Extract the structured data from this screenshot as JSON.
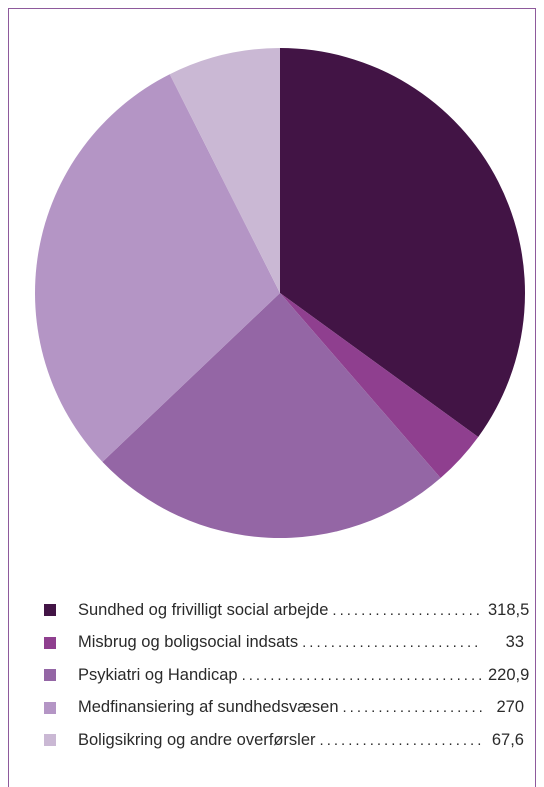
{
  "chart_data": {
    "type": "pie",
    "slices": [
      {
        "label": "Sundhed og frivilligt social arbejde",
        "value": 318.5,
        "value_label": "318,5",
        "color": "#421445"
      },
      {
        "label": "Misbrug og boligsocial indsats",
        "value": 33,
        "value_label": "33",
        "color": "#8f3f8f"
      },
      {
        "label": "Psykiatri og Handicap",
        "value": 220.9,
        "value_label": "220,9",
        "color": "#9466a5"
      },
      {
        "label": "Medfinansiering af sundhedsvæsen",
        "value": 270,
        "value_label": "270",
        "color": "#b495c5"
      },
      {
        "label": "Boligsikring og andre overførsler",
        "value": 67.6,
        "value_label": "67,6",
        "color": "#cab8d4"
      }
    ],
    "start_angle": "12 o'clock",
    "direction": "clockwise",
    "legend_placement": "bottom"
  }
}
